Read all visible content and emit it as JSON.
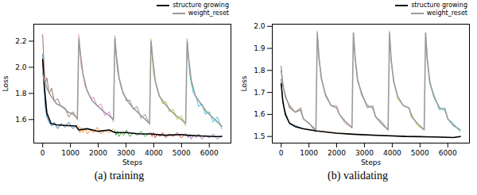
{
  "chart_data": [
    {
      "type": "line",
      "title": "(a) training",
      "x_label": "Steps",
      "y_label": "Loss",
      "xlim": [
        -320,
        6780
      ],
      "xticks": [
        0,
        1000,
        2000,
        3000,
        4000,
        5000,
        6000
      ],
      "ylim": [
        1.42,
        2.33
      ],
      "yticks": [
        1.6,
        1.8,
        {
          "value": 2.0,
          "label": "2.0"
        },
        2.2
      ],
      "grid": false,
      "legend": "upper right",
      "series": [
        {
          "color": "#8c564b",
          "x": [
            0,
            40,
            90,
            150,
            230,
            320,
            420,
            540,
            660,
            800,
            940,
            1090,
            1250
          ],
          "values": [
            2.25,
            2.05,
            1.88,
            1.92,
            1.8,
            1.84,
            1.74,
            1.76,
            1.7,
            1.69,
            1.62,
            1.66,
            1.6
          ]
        },
        {
          "color": "#e377c2",
          "x": [
            1300,
            1340,
            1390,
            1450,
            1530,
            1620,
            1720,
            1840,
            1960,
            2100,
            2240,
            2390,
            2550
          ],
          "values": [
            2.25,
            2.15,
            2.0,
            1.96,
            1.85,
            1.82,
            1.76,
            1.77,
            1.7,
            1.72,
            1.63,
            1.66,
            1.58
          ]
        },
        {
          "color": "#7f7f7f",
          "x": [
            2600,
            2640,
            2690,
            2750,
            2830,
            2920,
            3020,
            3140,
            3260,
            3400,
            3540,
            3690,
            3850
          ],
          "values": [
            2.24,
            2.12,
            1.98,
            1.92,
            1.84,
            1.8,
            1.74,
            1.75,
            1.68,
            1.7,
            1.61,
            1.64,
            1.56
          ]
        },
        {
          "color": "#bcbd22",
          "x": [
            3900,
            3940,
            3990,
            4050,
            4130,
            4220,
            4320,
            4440,
            4560,
            4700,
            4840,
            4990,
            5150
          ],
          "values": [
            2.22,
            2.1,
            1.95,
            1.9,
            1.82,
            1.78,
            1.72,
            1.74,
            1.66,
            1.68,
            1.6,
            1.63,
            1.55
          ]
        },
        {
          "color": "#17becf",
          "x": [
            5200,
            5240,
            5290,
            5350,
            5430,
            5520,
            5620,
            5740,
            5860,
            6000,
            6140,
            6290,
            6450
          ],
          "values": [
            2.22,
            2.1,
            1.96,
            1.88,
            1.8,
            1.78,
            1.7,
            1.72,
            1.64,
            1.66,
            1.58,
            1.62,
            1.53
          ]
        },
        {
          "color": "#1f77b4",
          "x": [
            0,
            40,
            90,
            150,
            230,
            320,
            420,
            540,
            660,
            800,
            940,
            1090,
            1250
          ],
          "values": [
            2.1,
            1.9,
            1.7,
            1.62,
            1.58,
            1.55,
            1.58,
            1.53,
            1.57,
            1.54,
            1.58,
            1.53,
            1.56
          ]
        },
        {
          "color": "#ff7f0e",
          "x": [
            1300,
            1340,
            1390,
            1450,
            1530,
            1620,
            1720,
            1840,
            1960,
            2100,
            2240,
            2390,
            2550
          ],
          "values": [
            1.55,
            1.5,
            1.54,
            1.5,
            1.53,
            1.49,
            1.52,
            1.5,
            1.54,
            1.49,
            1.52,
            1.5,
            1.53
          ]
        },
        {
          "color": "#2ca02c",
          "x": [
            2600,
            2640,
            2690,
            2750,
            2830,
            2920,
            3020,
            3140,
            3260,
            3400,
            3540,
            3690,
            3850
          ],
          "values": [
            1.52,
            1.48,
            1.51,
            1.47,
            1.5,
            1.48,
            1.52,
            1.47,
            1.5,
            1.48,
            1.51,
            1.47,
            1.5
          ]
        },
        {
          "color": "#d62728",
          "x": [
            3900,
            3940,
            3990,
            4050,
            4130,
            4220,
            4320,
            4440,
            4560,
            4700,
            4840,
            4990,
            5150
          ],
          "values": [
            1.5,
            1.47,
            1.5,
            1.46,
            1.49,
            1.47,
            1.5,
            1.46,
            1.49,
            1.47,
            1.5,
            1.46,
            1.49
          ]
        },
        {
          "color": "#9467bd",
          "x": [
            5200,
            5240,
            5290,
            5350,
            5430,
            5520,
            5620,
            5740,
            5860,
            6000,
            6140,
            6290,
            6450
          ],
          "values": [
            1.49,
            1.46,
            1.49,
            1.45,
            1.48,
            1.46,
            1.49,
            1.45,
            1.48,
            1.46,
            1.49,
            1.45,
            1.48
          ]
        },
        {
          "name": "structure growing",
          "color": "#000000",
          "x": [
            0,
            60,
            150,
            300,
            500,
            800,
            1200,
            1300,
            1600,
            2000,
            2400,
            2600,
            3000,
            3500,
            3900,
            4400,
            5000,
            5200,
            5700,
            6200,
            6450
          ],
          "values": [
            2.06,
            1.85,
            1.65,
            1.57,
            1.56,
            1.555,
            1.55,
            1.52,
            1.53,
            1.51,
            1.52,
            1.5,
            1.5,
            1.49,
            1.49,
            1.48,
            1.485,
            1.48,
            1.475,
            1.47,
            1.47
          ]
        },
        {
          "name": "weight_reset",
          "color": "#9a9a9a",
          "x": [
            0,
            60,
            150,
            300,
            500,
            700,
            900,
            1100,
            1250,
            1300,
            1360,
            1450,
            1600,
            1800,
            2000,
            2200,
            2400,
            2550,
            2600,
            2660,
            2750,
            2900,
            3100,
            3300,
            3500,
            3700,
            3850,
            3900,
            3960,
            4050,
            4200,
            4400,
            4600,
            4800,
            5000,
            5150,
            5200,
            5260,
            5350,
            5500,
            5700,
            5900,
            6100,
            6300,
            6450
          ],
          "values": [
            1.95,
            1.9,
            1.84,
            1.78,
            1.72,
            1.7,
            1.66,
            1.64,
            1.61,
            2.22,
            2.1,
            1.95,
            1.82,
            1.74,
            1.7,
            1.66,
            1.63,
            1.6,
            2.22,
            2.08,
            1.92,
            1.8,
            1.73,
            1.68,
            1.64,
            1.6,
            1.57,
            2.2,
            2.07,
            1.9,
            1.78,
            1.72,
            1.67,
            1.63,
            1.6,
            1.57,
            2.2,
            2.06,
            1.9,
            1.78,
            1.72,
            1.66,
            1.62,
            1.58,
            1.55
          ]
        }
      ]
    },
    {
      "type": "line",
      "title": "(b) validating",
      "x_label": "Steps",
      "y_label": "Loss",
      "xlim": [
        -320,
        6780
      ],
      "xticks": [
        0,
        1000,
        2000,
        3000,
        4000,
        5000,
        6000
      ],
      "ylim": [
        1.47,
        2.01
      ],
      "yticks": [
        1.5,
        1.6,
        1.7,
        1.8,
        1.9,
        {
          "value": 2.0,
          "label": "2.0"
        }
      ],
      "grid": false,
      "legend": "upper right",
      "series": [
        {
          "color": "#8c564b",
          "x": [
            0,
            60,
            150,
            300,
            500,
            700,
            800,
            1000,
            1250
          ],
          "values": [
            1.82,
            1.73,
            1.69,
            1.63,
            1.61,
            1.63,
            1.58,
            1.56,
            1.52
          ]
        },
        {
          "color": "#e377c2",
          "x": [
            1300,
            1360,
            1450,
            1600,
            1800,
            2000,
            2100,
            2300,
            2550
          ],
          "values": [
            1.98,
            1.85,
            1.77,
            1.68,
            1.64,
            1.64,
            1.6,
            1.56,
            1.54
          ]
        },
        {
          "color": "#7f7f7f",
          "x": [
            2600,
            2660,
            2750,
            2900,
            3100,
            3300,
            3400,
            3600,
            3850
          ],
          "values": [
            1.97,
            1.87,
            1.75,
            1.7,
            1.63,
            1.64,
            1.59,
            1.57,
            1.53
          ]
        },
        {
          "color": "#bcbd22",
          "x": [
            3900,
            3960,
            4050,
            4200,
            4400,
            4600,
            4700,
            4900,
            5150
          ],
          "values": [
            1.98,
            1.84,
            1.76,
            1.67,
            1.64,
            1.63,
            1.6,
            1.55,
            1.53
          ]
        },
        {
          "color": "#17becf",
          "x": [
            5200,
            5260,
            5350,
            5500,
            5700,
            5900,
            6000,
            6200,
            6450
          ],
          "values": [
            1.97,
            1.86,
            1.74,
            1.69,
            1.62,
            1.63,
            1.58,
            1.56,
            1.52
          ]
        },
        {
          "color": "#1f77b4",
          "x": [
            0,
            60,
            150,
            300,
            500,
            800,
            1000,
            1250
          ],
          "values": [
            1.76,
            1.65,
            1.61,
            1.56,
            1.55,
            1.535,
            1.53,
            1.525
          ]
        },
        {
          "color": "#ff7f0e",
          "x": [
            1300,
            1600,
            1950,
            2300,
            2550
          ],
          "values": [
            1.525,
            1.52,
            1.515,
            1.512,
            1.51
          ]
        },
        {
          "color": "#2ca02c",
          "x": [
            2600,
            2900,
            3250,
            3600,
            3850
          ],
          "values": [
            1.51,
            1.508,
            1.505,
            1.504,
            1.503
          ]
        },
        {
          "color": "#d62728",
          "x": [
            3900,
            4200,
            4550,
            4900,
            5150
          ],
          "values": [
            1.503,
            1.502,
            1.5,
            1.5,
            1.499
          ]
        },
        {
          "color": "#9467bd",
          "x": [
            5200,
            5500,
            5850,
            6200,
            6450
          ],
          "values": [
            1.499,
            1.498,
            1.497,
            1.495,
            1.5
          ]
        },
        {
          "name": "structure growing",
          "color": "#000000",
          "x": [
            0,
            60,
            150,
            300,
            500,
            800,
            1300,
            2000,
            2600,
            3500,
            4500,
            5500,
            6200,
            6450
          ],
          "values": [
            1.74,
            1.66,
            1.6,
            1.56,
            1.545,
            1.535,
            1.525,
            1.515,
            1.51,
            1.505,
            1.5,
            1.498,
            1.495,
            1.5
          ]
        },
        {
          "name": "weight_reset",
          "color": "#9a9a9a",
          "x": [
            0,
            60,
            150,
            300,
            500,
            700,
            800,
            1000,
            1250,
            1300,
            1360,
            1450,
            1600,
            1800,
            2000,
            2100,
            2300,
            2550,
            2600,
            2660,
            2750,
            2900,
            3100,
            3300,
            3400,
            3600,
            3850,
            3900,
            3960,
            4050,
            4200,
            4400,
            4600,
            4700,
            4900,
            5150,
            5200,
            5260,
            5350,
            5500,
            5700,
            5900,
            6000,
            6200,
            6450
          ],
          "values": [
            1.8,
            1.74,
            1.68,
            1.64,
            1.61,
            1.62,
            1.58,
            1.56,
            1.53,
            1.97,
            1.86,
            1.76,
            1.69,
            1.64,
            1.63,
            1.6,
            1.57,
            1.54,
            1.97,
            1.86,
            1.76,
            1.69,
            1.64,
            1.63,
            1.59,
            1.56,
            1.53,
            1.97,
            1.85,
            1.75,
            1.68,
            1.64,
            1.63,
            1.59,
            1.56,
            1.53,
            1.97,
            1.85,
            1.75,
            1.68,
            1.63,
            1.62,
            1.58,
            1.55,
            1.53
          ]
        }
      ]
    }
  ]
}
